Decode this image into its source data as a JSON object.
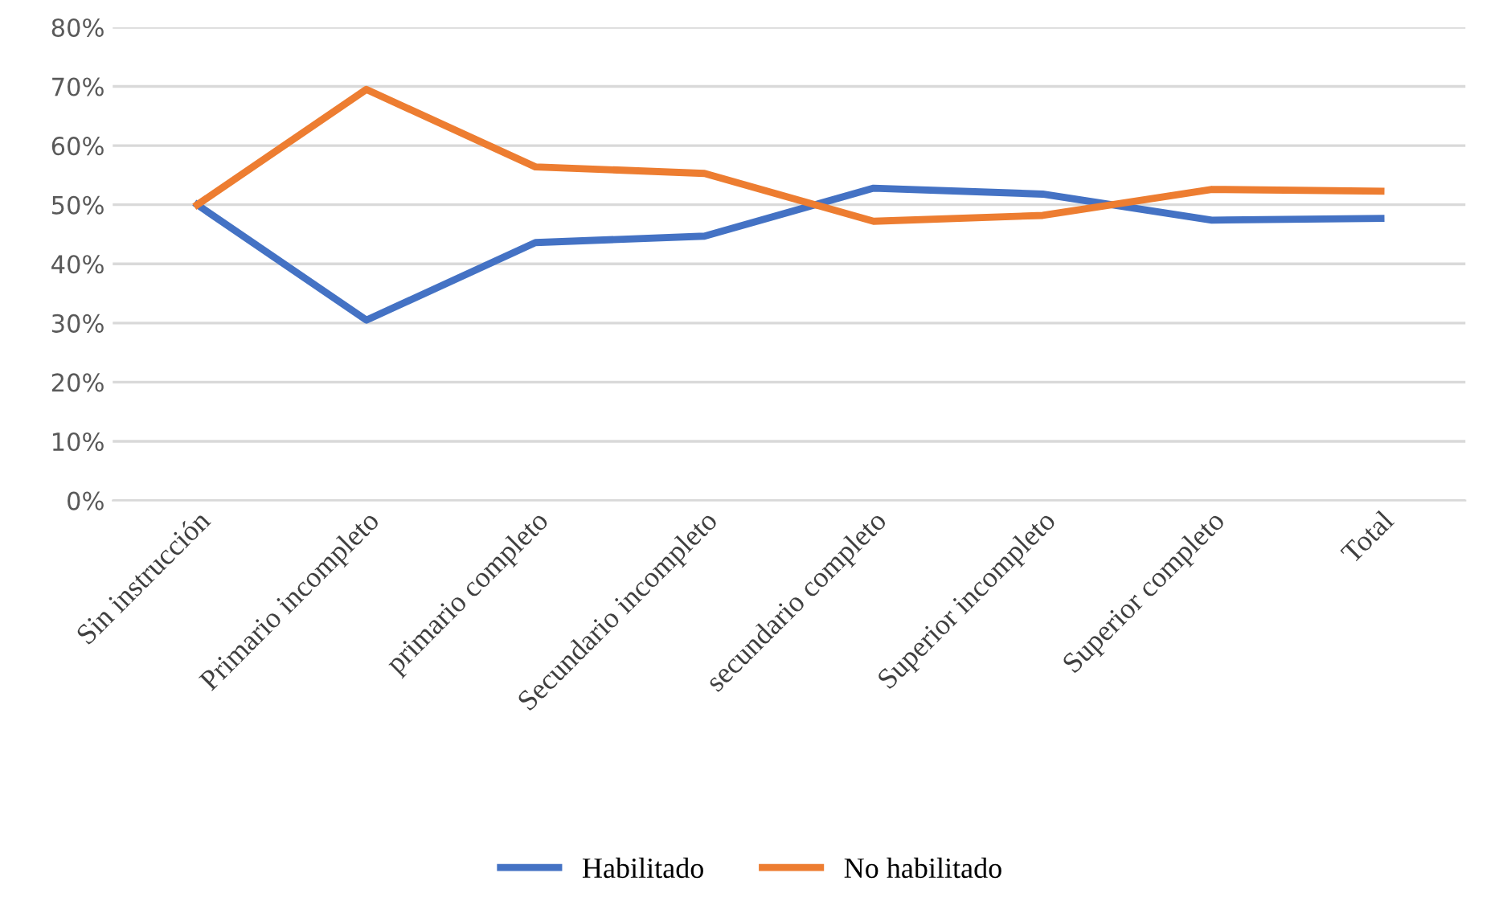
{
  "chart_data": {
    "type": "line",
    "categories": [
      "Sin instrucción",
      "Primario incompleto",
      "primario completo",
      "Secundario incompleto",
      "secundario completo",
      "Superior incompleto",
      "Superior completo",
      "Total"
    ],
    "series": [
      {
        "name": "Habilitado",
        "color": "#4472c4",
        "values": [
          50,
          30.5,
          43.6,
          44.7,
          52.8,
          51.8,
          47.4,
          47.7
        ]
      },
      {
        "name": "No habilitado",
        "color": "#ed7d31",
        "values": [
          50,
          69.5,
          56.4,
          55.3,
          47.2,
          48.2,
          52.6,
          52.3
        ]
      }
    ],
    "ylim": [
      0,
      80
    ],
    "yticks": [
      {
        "value": 0,
        "label": "0%"
      },
      {
        "value": 10,
        "label": "10%"
      },
      {
        "value": 20,
        "label": "20%"
      },
      {
        "value": 30,
        "label": "30%"
      },
      {
        "value": 40,
        "label": "40%"
      },
      {
        "value": 50,
        "label": "50%"
      },
      {
        "value": 60,
        "label": "60%"
      },
      {
        "value": 70,
        "label": "70%"
      },
      {
        "value": 80,
        "label": "80%"
      }
    ],
    "grid": "y",
    "legend": "bottom",
    "marker": "none",
    "line_style": "solid"
  }
}
